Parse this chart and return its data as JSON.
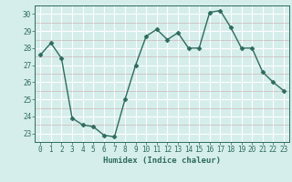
{
  "x": [
    0,
    1,
    2,
    3,
    4,
    5,
    6,
    7,
    8,
    9,
    10,
    11,
    12,
    13,
    14,
    15,
    16,
    17,
    18,
    19,
    20,
    21,
    22,
    23
  ],
  "y": [
    27.6,
    28.3,
    27.4,
    23.9,
    23.5,
    23.4,
    22.9,
    22.8,
    25.0,
    27.0,
    28.7,
    29.1,
    28.5,
    28.9,
    28.0,
    28.0,
    30.1,
    30.2,
    29.2,
    28.0,
    28.0,
    26.6,
    26.0,
    25.5
  ],
  "line_color": "#2e6b5e",
  "marker": "D",
  "marker_size": 2.5,
  "bg_color": "#d5eeeb",
  "grid_major_color": "#ffffff",
  "grid_minor_color": "#c8d8d5",
  "xlabel": "Humidex (Indice chaleur)",
  "ylim": [
    22.5,
    30.5
  ],
  "xlim": [
    -0.5,
    23.5
  ],
  "yticks": [
    23,
    24,
    25,
    26,
    27,
    28,
    29,
    30
  ],
  "xticks": [
    0,
    1,
    2,
    3,
    4,
    5,
    6,
    7,
    8,
    9,
    10,
    11,
    12,
    13,
    14,
    15,
    16,
    17,
    18,
    19,
    20,
    21,
    22,
    23
  ],
  "font_color": "#2e6b5e",
  "label_fontsize": 6.5,
  "tick_fontsize": 5.5,
  "linewidth": 1.0,
  "spine_color": "#2e6b5e"
}
